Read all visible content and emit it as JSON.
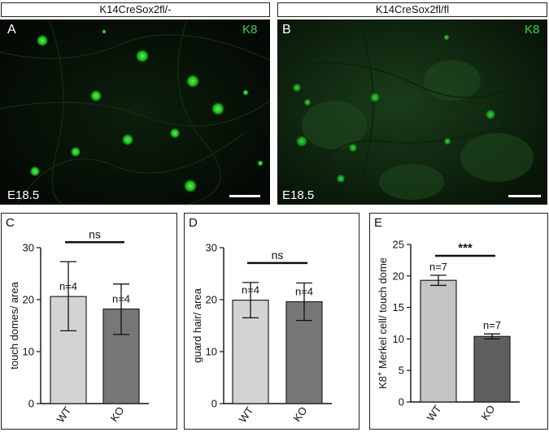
{
  "headers": [
    "K14CreSox2fl/-",
    "K14CreSox2fl/fl"
  ],
  "micrographs": [
    {
      "panel": "A",
      "stain": "K8",
      "age": "E18.5"
    },
    {
      "panel": "B",
      "stain": "K8",
      "age": "E18.5"
    }
  ],
  "colors": {
    "wt_bar": "#d3d3d3",
    "ko_bar": "#777777",
    "stain_green": "#3fd03f",
    "e_wt_bar": "#c4c4c4",
    "e_ko_bar": "#5f5f5f"
  },
  "chart_data": [
    {
      "panel": "C",
      "type": "bar",
      "categories": [
        "WT",
        "KO"
      ],
      "values": [
        20.6,
        18.2
      ],
      "error_low": [
        14.0,
        13.3
      ],
      "error_high": [
        27.3,
        23.0
      ],
      "n_labels": [
        "n=4",
        "n=4"
      ],
      "significance": "ns",
      "ylabel": "touch domes/ area",
      "ylim": [
        0,
        30
      ],
      "yticks": [
        "0",
        "10",
        "20",
        "30"
      ]
    },
    {
      "panel": "D",
      "type": "bar",
      "categories": [
        "WT",
        "KO"
      ],
      "values": [
        19.9,
        19.6
      ],
      "error_low": [
        16.5,
        16.0
      ],
      "error_high": [
        23.3,
        23.2
      ],
      "n_labels": [
        "n=4",
        "n=4"
      ],
      "significance": "ns",
      "ylabel": "guard hair/ area",
      "ylim": [
        0,
        30
      ],
      "yticks": [
        "0",
        "10",
        "20",
        "30"
      ]
    },
    {
      "panel": "E",
      "type": "bar",
      "categories": [
        "WT",
        "KO"
      ],
      "values": [
        19.3,
        10.4
      ],
      "error_low": [
        18.5,
        10.0
      ],
      "error_high": [
        20.1,
        10.8
      ],
      "n_labels": [
        "n=7",
        "n=7"
      ],
      "significance": "***",
      "ylabel_pre": "K8",
      "ylabel_sup": "+",
      "ylabel_post": " Merkel cell/ touch dome",
      "ylim": [
        0,
        25
      ],
      "yticks": [
        "0",
        "5",
        "10",
        "15",
        "20",
        "25"
      ]
    }
  ]
}
